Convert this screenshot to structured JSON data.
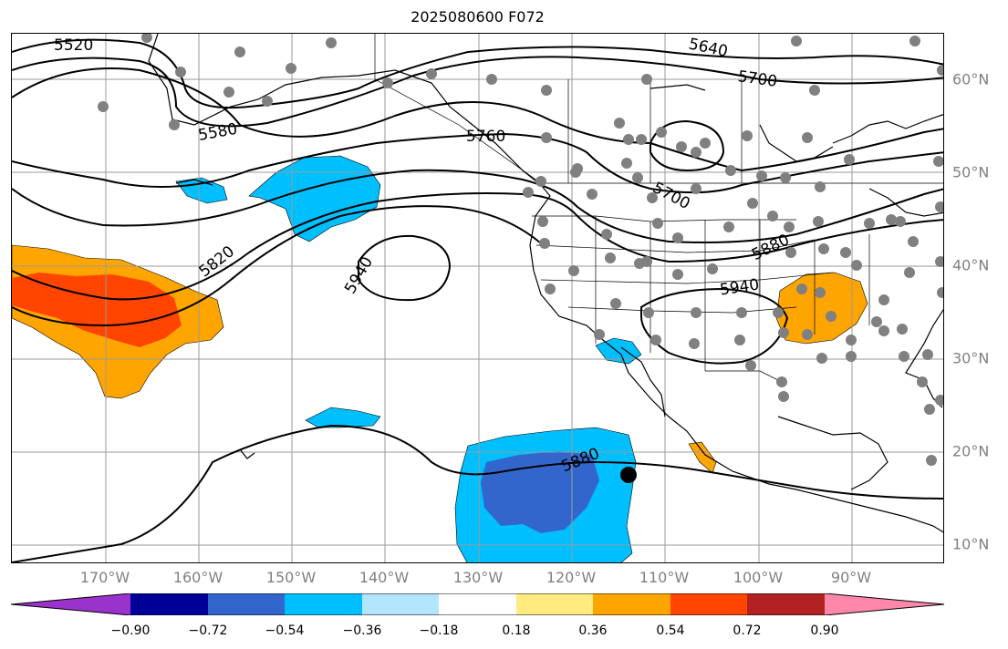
{
  "title": "2025080600 F072",
  "longitude_labels": [
    "170°W",
    "160°W",
    "150°W",
    "140°W",
    "130°W",
    "120°W",
    "110°W",
    "100°W",
    "90°W"
  ],
  "latitude_labels": [
    "60°N",
    "50°N",
    "40°N",
    "30°N",
    "20°N",
    "10°N"
  ],
  "contour_labels": [
    "5520",
    "5580",
    "5640",
    "5700",
    "5760",
    "5820",
    "5880",
    "5940"
  ],
  "colorbar": {
    "ticks": [
      "−0.90",
      "−0.72",
      "−0.54",
      "−0.36",
      "−0.18",
      "0.18",
      "0.36",
      "0.54",
      "0.72",
      "0.90"
    ],
    "colors": [
      "#9933cc",
      "#000099",
      "#3366cc",
      "#00bfff",
      "#b3e5ff",
      "#ffffff",
      "#ffeb80",
      "#ffa500",
      "#ff4500",
      "#b22222",
      "#ff88aa"
    ]
  },
  "station_marker": "black-dot",
  "station_markers": "grey-dots"
}
